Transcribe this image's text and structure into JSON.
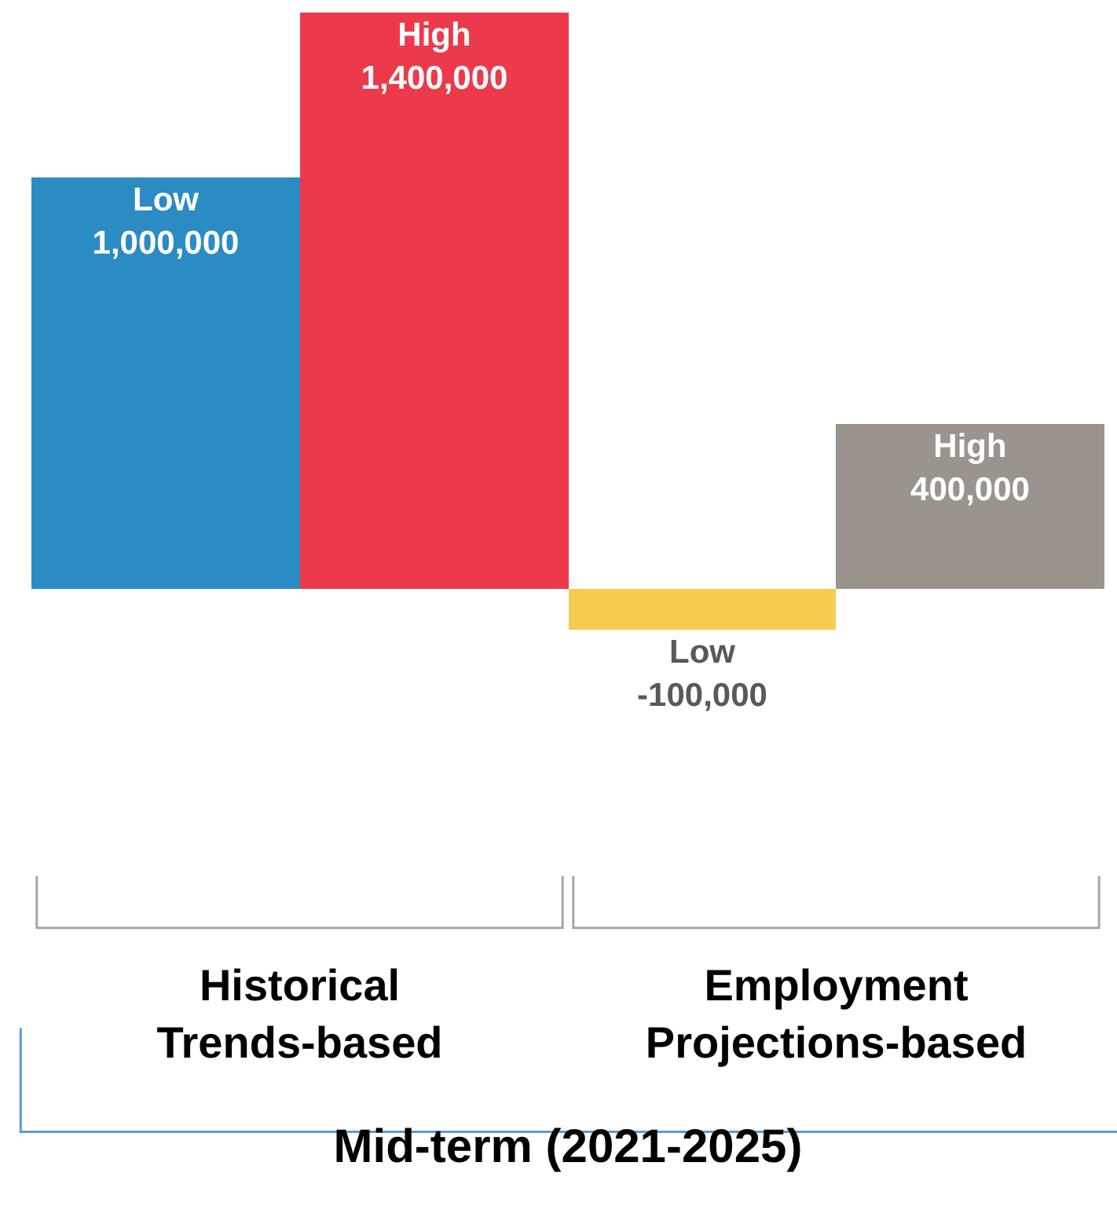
{
  "chart_data": {
    "type": "bar",
    "categories": [
      "Historical\nTrends-based",
      "Employment\nProjections-based"
    ],
    "series": [
      {
        "name": "Low",
        "colors": [
          "#2b8bc3",
          "#f4cc4e"
        ],
        "values": [
          1000000,
          -100000
        ],
        "value_labels": [
          "1,000,000",
          "-100,000"
        ]
      },
      {
        "name": "High",
        "colors": [
          "#ec3a4a",
          "#9a948d"
        ],
        "values": [
          1400000,
          400000
        ],
        "value_labels": [
          "1,400,000",
          "400,000"
        ]
      }
    ],
    "xlabel": "Mid-term (2021-2025)"
  }
}
